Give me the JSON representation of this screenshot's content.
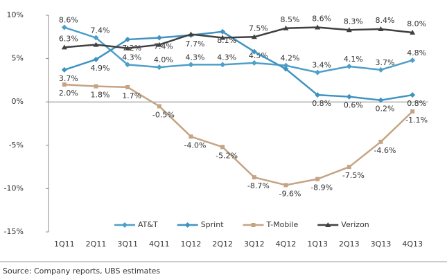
{
  "chart_data": {
    "type": "line",
    "categories": [
      "1Q11",
      "2Q11",
      "3Q11",
      "4Q11",
      "1Q12",
      "2Q12",
      "3Q12",
      "4Q12",
      "1Q13",
      "2Q13",
      "3Q13",
      "4Q13"
    ],
    "ylim": [
      -15,
      10
    ],
    "yticks": [
      {
        "value": -15,
        "label": "-15%"
      },
      {
        "value": -10,
        "label": "-10%"
      },
      {
        "value": -5,
        "label": "-5%"
      },
      {
        "value": 0,
        "label": "0%"
      },
      {
        "value": 5,
        "label": "5%"
      },
      {
        "value": 10,
        "label": "10%"
      }
    ],
    "series": [
      {
        "name": "AT&T",
        "color": "#4e9fc8",
        "marker": "diamond",
        "values": [
          8.6,
          7.4,
          4.3,
          4.0,
          4.3,
          4.3,
          4.5,
          4.2,
          3.4,
          4.1,
          3.7,
          4.8
        ],
        "value_labels": [
          "8.6%",
          "7.4%",
          "4.3%",
          "4.0%",
          "4.3%",
          "4.3%",
          "4.5%",
          "4.2%",
          "3.4%",
          "4.1%",
          "3.7%",
          "4.8%"
        ]
      },
      {
        "name": "Sprint",
        "color": "#3f93c0",
        "marker": "diamond",
        "values": [
          3.7,
          4.9,
          7.2,
          7.4,
          7.7,
          8.1,
          5.8,
          3.8,
          0.8,
          0.6,
          0.2,
          0.8
        ],
        "value_labels": [
          "3.7%",
          "4.9%",
          "7.2%",
          "7.4%",
          "7.7%",
          "8.1%",
          null,
          null,
          "0.8%",
          "0.6%",
          "0.2%",
          "0.8%"
        ]
      },
      {
        "name": "T-Mobile",
        "color": "#c4a484",
        "marker": "square",
        "values": [
          2.0,
          1.8,
          1.7,
          -0.5,
          -4.0,
          -5.2,
          -8.7,
          -9.6,
          -8.9,
          -7.5,
          -4.6,
          -1.1
        ],
        "value_labels": [
          "2.0%",
          "1.8%",
          "1.7%",
          "-0.5%",
          "-4.0%",
          "-5.2%",
          "-8.7%",
          "-9.6%",
          "-8.9%",
          "-7.5%",
          "-4.6%",
          "-1.1%"
        ]
      },
      {
        "name": "Verizon",
        "color": "#404040",
        "marker": "triangle",
        "values": [
          6.3,
          6.6,
          6.2,
          6.6,
          7.8,
          7.4,
          7.5,
          8.5,
          8.6,
          8.3,
          8.4,
          8.0
        ],
        "value_labels": [
          "6.3%",
          null,
          null,
          null,
          null,
          null,
          "7.5%",
          "8.5%",
          "8.6%",
          "8.3%",
          "8.4%",
          "8.0%"
        ]
      }
    ],
    "legend": "bottom",
    "source": "Source:  Company reports, UBS estimates"
  }
}
